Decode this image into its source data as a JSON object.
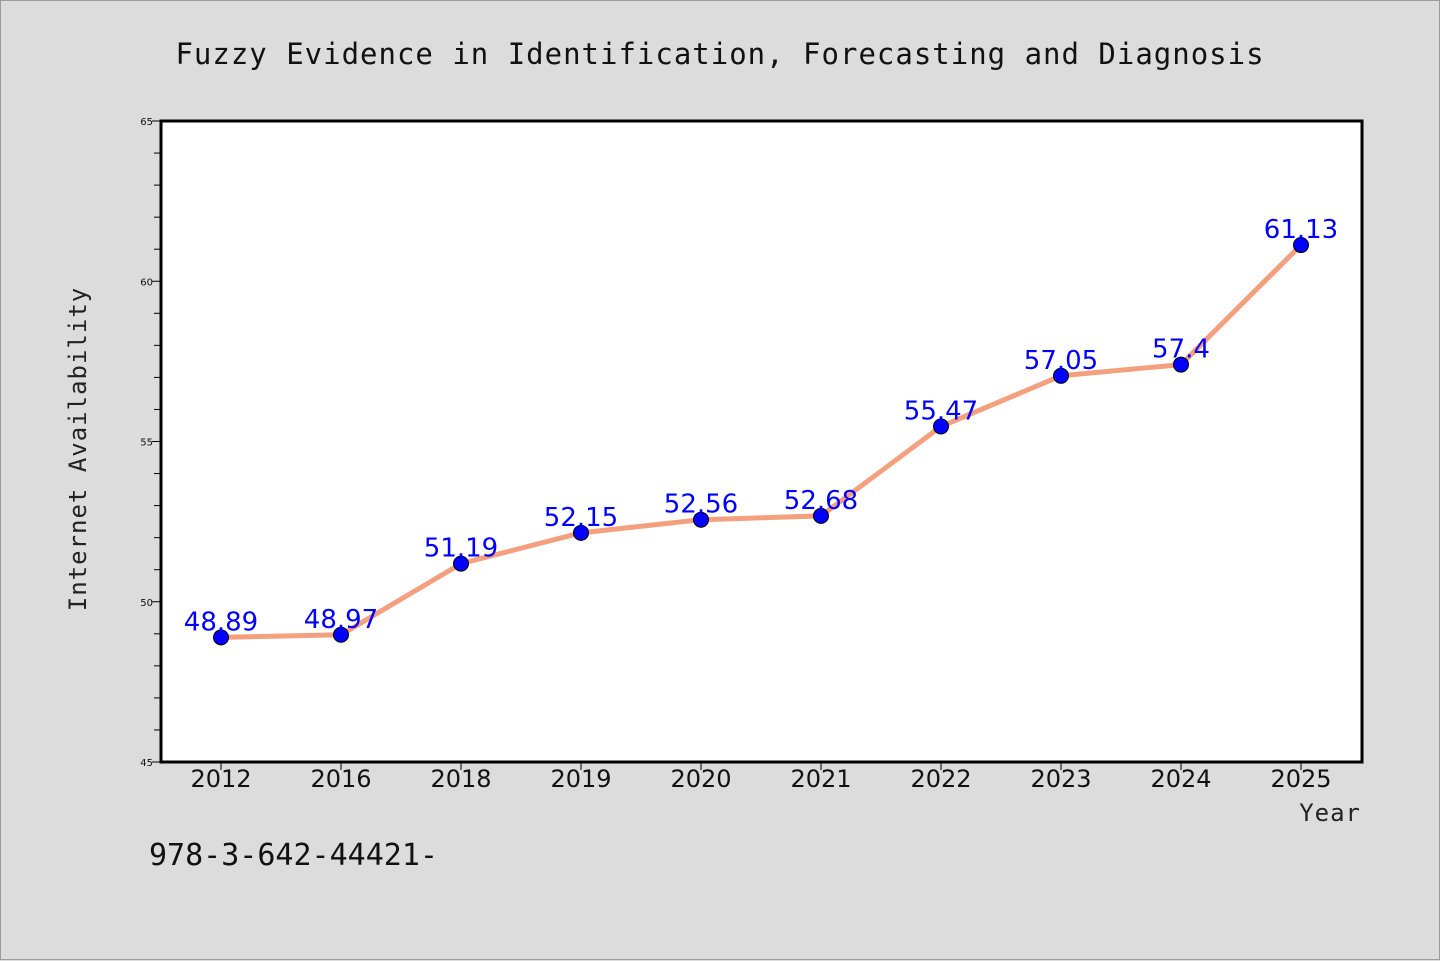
{
  "chart_data": {
    "type": "line",
    "title": "Fuzzy Evidence in Identification, Forecasting and Diagnosis",
    "xlabel": "Year",
    "ylabel": "Internet Availability",
    "categories": [
      "2012",
      "2016",
      "2018",
      "2019",
      "2020",
      "2021",
      "2022",
      "2023",
      "2024",
      "2025"
    ],
    "series": [
      {
        "values": [
          48.89,
          48.97,
          51.19,
          52.15,
          52.56,
          52.68,
          55.47,
          57.05,
          57.4,
          61.13
        ],
        "data_labels": [
          "48.89",
          "48.97",
          "51.19",
          "52.15",
          "52.56",
          "52.68",
          "55.47",
          "57.05",
          "57.4",
          "61.13"
        ],
        "line_color": "#f4a07e",
        "marker_color": "#0000ff"
      }
    ],
    "ylim": [
      45,
      65
    ],
    "y_ticks": [
      "45",
      "50",
      "55",
      "60",
      "65"
    ],
    "grid": false,
    "legend": "none"
  },
  "footer": {
    "text": "978-3-642-44421-"
  },
  "colors": {
    "background": "#dcdcdc",
    "plot_background": "#ffffff",
    "data_label": "#0000ff"
  }
}
